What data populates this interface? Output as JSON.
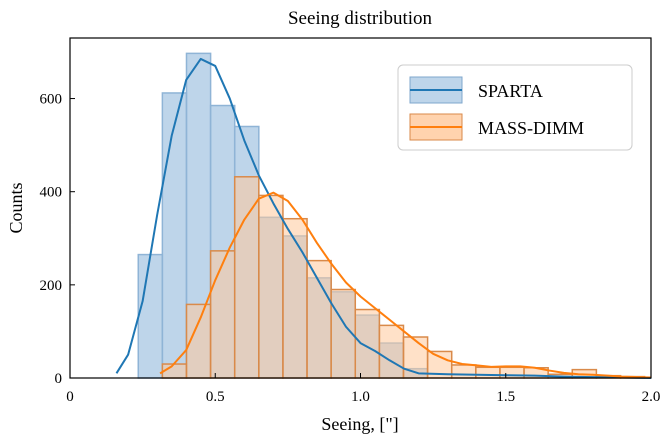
{
  "chart_data": {
    "type": "histogram",
    "title": "Seeing distribution",
    "xlabel": "Seeing, [\"]",
    "ylabel": "Counts",
    "xlim": [
      0,
      2.0
    ],
    "ylim": [
      0,
      730
    ],
    "xticks": [
      {
        "value": 0,
        "label": "0"
      },
      {
        "value": 0.5,
        "label": "0.5"
      },
      {
        "value": 1.0,
        "label": "1.0"
      },
      {
        "value": 1.5,
        "label": "1.5"
      },
      {
        "value": 2.0,
        "label": "2.0"
      }
    ],
    "yticks": [
      {
        "value": 0,
        "label": "0"
      },
      {
        "value": 200,
        "label": "200"
      },
      {
        "value": 400,
        "label": "400"
      },
      {
        "value": 600,
        "label": "600"
      }
    ],
    "legend_position": "top-right",
    "series": [
      {
        "name": "SPARTA",
        "color": "#1f77b4",
        "fill": "#a8c7e3",
        "bin_width": 0.083,
        "bin_starts": [
          0.235,
          0.318,
          0.401,
          0.484,
          0.567,
          0.65,
          0.733,
          0.816,
          0.899,
          0.982,
          1.065,
          1.148
        ],
        "counts": [
          265,
          612,
          697,
          585,
          540,
          345,
          305,
          215,
          185,
          135,
          75,
          20
        ],
        "kde": [
          [
            0.16,
            10
          ],
          [
            0.2,
            50
          ],
          [
            0.25,
            165
          ],
          [
            0.3,
            350
          ],
          [
            0.35,
            520
          ],
          [
            0.4,
            640
          ],
          [
            0.45,
            685
          ],
          [
            0.5,
            670
          ],
          [
            0.55,
            600
          ],
          [
            0.6,
            510
          ],
          [
            0.65,
            435
          ],
          [
            0.7,
            375
          ],
          [
            0.75,
            320
          ],
          [
            0.8,
            270
          ],
          [
            0.85,
            215
          ],
          [
            0.9,
            160
          ],
          [
            0.95,
            110
          ],
          [
            1.0,
            75
          ],
          [
            1.05,
            58
          ],
          [
            1.1,
            38
          ],
          [
            1.15,
            20
          ],
          [
            1.2,
            10
          ],
          [
            1.3,
            8
          ],
          [
            1.4,
            7
          ],
          [
            1.5,
            6
          ],
          [
            1.6,
            5
          ],
          [
            1.7,
            3
          ],
          [
            1.8,
            2
          ],
          [
            1.9,
            1
          ],
          [
            2.0,
            0
          ]
        ]
      },
      {
        "name": "MASS-DIMM",
        "color": "#ff7f0e",
        "fill": "#ffc89a",
        "bin_width": 0.083,
        "bin_starts": [
          0.318,
          0.401,
          0.484,
          0.567,
          0.65,
          0.733,
          0.816,
          0.899,
          0.982,
          1.065,
          1.148,
          1.231,
          1.314,
          1.397,
          1.48,
          1.563,
          1.646,
          1.729,
          1.812,
          1.895
        ],
        "counts": [
          30,
          158,
          273,
          432,
          392,
          342,
          252,
          190,
          147,
          113,
          88,
          57,
          28,
          23,
          23,
          22,
          8,
          18,
          5,
          3
        ],
        "kde": [
          [
            0.31,
            10
          ],
          [
            0.35,
            25
          ],
          [
            0.4,
            60
          ],
          [
            0.45,
            130
          ],
          [
            0.5,
            210
          ],
          [
            0.55,
            280
          ],
          [
            0.6,
            340
          ],
          [
            0.65,
            385
          ],
          [
            0.7,
            398
          ],
          [
            0.75,
            380
          ],
          [
            0.8,
            340
          ],
          [
            0.85,
            290
          ],
          [
            0.9,
            245
          ],
          [
            0.95,
            205
          ],
          [
            1.0,
            175
          ],
          [
            1.05,
            150
          ],
          [
            1.1,
            125
          ],
          [
            1.15,
            100
          ],
          [
            1.2,
            75
          ],
          [
            1.25,
            52
          ],
          [
            1.3,
            38
          ],
          [
            1.35,
            30
          ],
          [
            1.4,
            27
          ],
          [
            1.45,
            24
          ],
          [
            1.5,
            25
          ],
          [
            1.55,
            25
          ],
          [
            1.6,
            22
          ],
          [
            1.65,
            16
          ],
          [
            1.7,
            11
          ],
          [
            1.75,
            8
          ],
          [
            1.8,
            7
          ],
          [
            1.85,
            5
          ],
          [
            1.9,
            3
          ],
          [
            1.95,
            2
          ],
          [
            2.0,
            1
          ]
        ]
      }
    ]
  }
}
